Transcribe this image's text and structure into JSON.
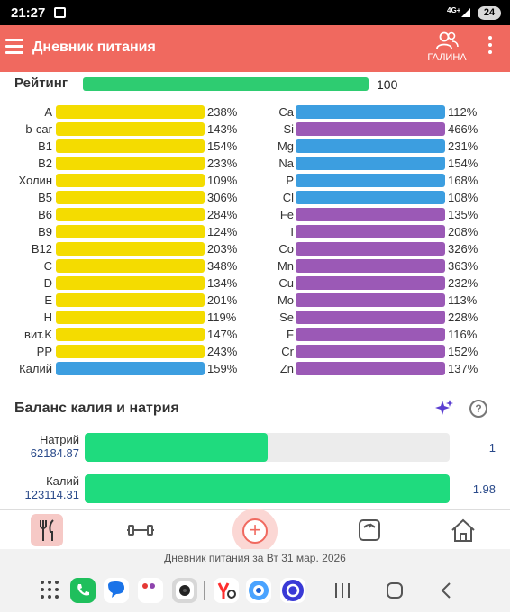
{
  "status_bar": {
    "time": "21:27",
    "network": "4G+",
    "battery": "24"
  },
  "app_bar": {
    "title": "Дневник питания",
    "user_name": "ГАЛИНА",
    "menu_icon": "hamburger-icon",
    "user_icon": "users-icon",
    "more_icon": "kebab-icon"
  },
  "rating": {
    "label": "Рейтинг",
    "value": "100",
    "fill_fraction": 1.0,
    "color": "#2ecc71"
  },
  "colors": {
    "yellow": "#f4dc00",
    "blue": "#3c9ee0",
    "purple": "#9b59b6",
    "accent": "#f0695f",
    "balance_green": "#1fdb7e"
  },
  "vitamins": [
    {
      "label": "A",
      "pct": "238%",
      "color": "yellow"
    },
    {
      "label": "b-car",
      "pct": "143%",
      "color": "yellow"
    },
    {
      "label": "B1",
      "pct": "154%",
      "color": "yellow"
    },
    {
      "label": "B2",
      "pct": "233%",
      "color": "yellow"
    },
    {
      "label": "Холин",
      "pct": "109%",
      "color": "yellow"
    },
    {
      "label": "B5",
      "pct": "306%",
      "color": "yellow"
    },
    {
      "label": "B6",
      "pct": "284%",
      "color": "yellow"
    },
    {
      "label": "B9",
      "pct": "124%",
      "color": "yellow"
    },
    {
      "label": "B12",
      "pct": "203%",
      "color": "yellow"
    },
    {
      "label": "C",
      "pct": "348%",
      "color": "yellow"
    },
    {
      "label": "D",
      "pct": "134%",
      "color": "yellow"
    },
    {
      "label": "E",
      "pct": "201%",
      "color": "yellow"
    },
    {
      "label": "H",
      "pct": "119%",
      "color": "yellow"
    },
    {
      "label": "вит.K",
      "pct": "147%",
      "color": "yellow"
    },
    {
      "label": "PP",
      "pct": "243%",
      "color": "yellow"
    },
    {
      "label": "Калий",
      "pct": "159%",
      "color": "blue"
    }
  ],
  "minerals": [
    {
      "label": "Ca",
      "pct": "112%",
      "color": "blue"
    },
    {
      "label": "Si",
      "pct": "466%",
      "color": "purple"
    },
    {
      "label": "Mg",
      "pct": "231%",
      "color": "blue"
    },
    {
      "label": "Na",
      "pct": "154%",
      "color": "blue"
    },
    {
      "label": "P",
      "pct": "168%",
      "color": "blue"
    },
    {
      "label": "Cl",
      "pct": "108%",
      "color": "blue"
    },
    {
      "label": "Fe",
      "pct": "135%",
      "color": "purple"
    },
    {
      "label": "I",
      "pct": "208%",
      "color": "purple"
    },
    {
      "label": "Co",
      "pct": "326%",
      "color": "purple"
    },
    {
      "label": "Mn",
      "pct": "363%",
      "color": "purple"
    },
    {
      "label": "Cu",
      "pct": "232%",
      "color": "purple"
    },
    {
      "label": "Mo",
      "pct": "113%",
      "color": "purple"
    },
    {
      "label": "Se",
      "pct": "228%",
      "color": "purple"
    },
    {
      "label": "F",
      "pct": "116%",
      "color": "purple"
    },
    {
      "label": "Cr",
      "pct": "152%",
      "color": "purple"
    },
    {
      "label": "Zn",
      "pct": "137%",
      "color": "purple"
    }
  ],
  "balance": {
    "title": "Баланс калия и натрия",
    "sparkle_icon": "sparkle-icon",
    "help_label": "?",
    "rows": [
      {
        "name": "Натрий",
        "amount": "62184.87",
        "ratio": "1",
        "fill_fraction": 0.5
      },
      {
        "name": "Калий",
        "amount": "123114.31",
        "ratio": "1.98",
        "fill_fraction": 1.0
      }
    ]
  },
  "bottom_nav": {
    "items": [
      "fork-knife-icon",
      "dumbbell-icon",
      "add-icon",
      "scale-icon",
      "home-icon"
    ],
    "add_label": "+"
  },
  "diary_caption": "Дневник питания за Вт 31 мар. 2026",
  "system_nav": {
    "apps": [
      "apps-grid-icon",
      "phone-app-icon",
      "messages-app-icon",
      "dots-app-icon",
      "camera-app-icon",
      "yandex-app-icon",
      "browser-app-icon",
      "chat-app-icon"
    ],
    "buttons": [
      "recents-icon",
      "home-button-icon",
      "back-icon"
    ]
  }
}
